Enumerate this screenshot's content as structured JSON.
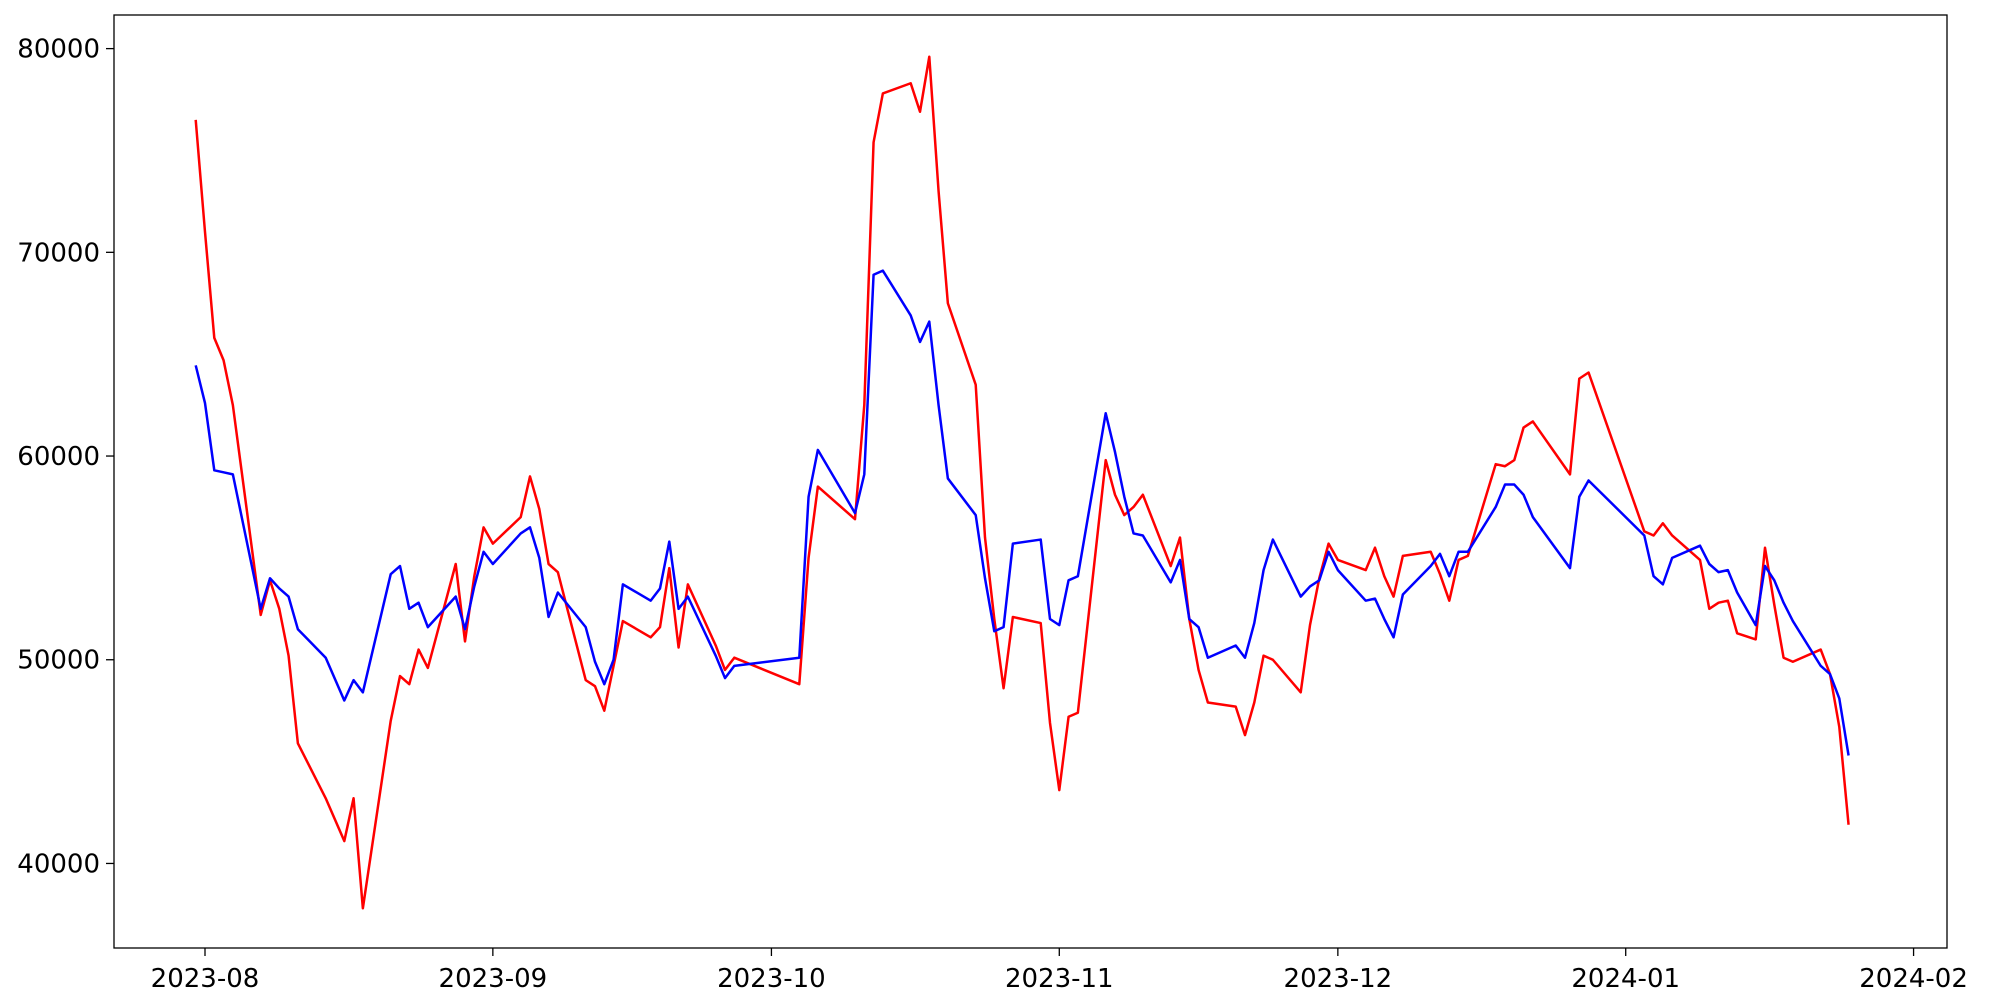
{
  "chart_data": {
    "type": "line",
    "x": [
      -1,
      0,
      1,
      2,
      3,
      6,
      7,
      8,
      9,
      10,
      13,
      15,
      16,
      17,
      20,
      21,
      22,
      23,
      24,
      27,
      28,
      29,
      30,
      31,
      34,
      35,
      36,
      37,
      38,
      41,
      42,
      43,
      44,
      45,
      48,
      49,
      50,
      51,
      52,
      55,
      56,
      57,
      64,
      65,
      66,
      70,
      71,
      72,
      73,
      76,
      77,
      78,
      79,
      80,
      83,
      84,
      85,
      86,
      87,
      90,
      91,
      92,
      93,
      94,
      97,
      98,
      99,
      100,
      101,
      104,
      105,
      106,
      107,
      108,
      111,
      112,
      113,
      114,
      115,
      118,
      119,
      120,
      121,
      122,
      125,
      126,
      127,
      128,
      129,
      132,
      133,
      134,
      135,
      136,
      139,
      140,
      141,
      142,
      143,
      147,
      148,
      149,
      155,
      156,
      157,
      158,
      161,
      162,
      163,
      164,
      165,
      167,
      168,
      169,
      170,
      171,
      174,
      175,
      176,
      177
    ],
    "series": [
      {
        "color": "#ff0000",
        "values": [
          76500,
          71000,
          65800,
          64700,
          62500,
          52200,
          53900,
          52500,
          50200,
          45900,
          43200,
          41100,
          43200,
          37800,
          47000,
          49200,
          48800,
          50500,
          49600,
          54700,
          50900,
          54100,
          56500,
          55700,
          57000,
          59000,
          57400,
          54700,
          54300,
          49000,
          48700,
          47500,
          49700,
          51900,
          51100,
          51600,
          54500,
          50600,
          53700,
          50700,
          49500,
          50100,
          48800,
          55000,
          58500,
          56900,
          62500,
          75400,
          77800,
          78300,
          76900,
          79600,
          73000,
          67500,
          63500,
          56000,
          52000,
          48600,
          52100,
          51800,
          46900,
          43600,
          47200,
          47400,
          59800,
          58100,
          57100,
          57500,
          58100,
          54600,
          56000,
          52000,
          49500,
          47900,
          47700,
          46300,
          47900,
          50200,
          50000,
          48400,
          51700,
          54000,
          55700,
          54900,
          54400,
          55500,
          54100,
          53100,
          55100,
          55300,
          54200,
          52900,
          54900,
          55100,
          59600,
          59500,
          59800,
          61400,
          61700,
          59100,
          63800,
          64100,
          56300,
          56100,
          56700,
          56100,
          54900,
          52500,
          52800,
          52900,
          51300,
          51000,
          55500,
          52700,
          50100,
          49900,
          50500,
          49300,
          46700,
          41900
        ]
      },
      {
        "color": "#0000ff",
        "values": [
          64450,
          62600,
          59300,
          59200,
          59100,
          52500,
          54000,
          53500,
          53100,
          51500,
          50100,
          48000,
          49000,
          48400,
          54200,
          54600,
          52500,
          52800,
          51600,
          53100,
          51500,
          53600,
          55300,
          54700,
          56200,
          56500,
          55000,
          52100,
          53300,
          51600,
          49900,
          48800,
          50000,
          53700,
          52900,
          53500,
          55800,
          52500,
          53100,
          50200,
          49100,
          49700,
          50100,
          58000,
          60300,
          57200,
          59100,
          68900,
          69100,
          66900,
          65600,
          66600,
          62500,
          58900,
          57100,
          54000,
          51400,
          51600,
          55700,
          55900,
          52000,
          51700,
          53900,
          54100,
          62100,
          60200,
          58000,
          56200,
          56100,
          53800,
          54900,
          52000,
          51600,
          50100,
          50700,
          50100,
          51800,
          54400,
          55900,
          53100,
          53600,
          53900,
          55300,
          54400,
          52900,
          53000,
          52000,
          51100,
          53200,
          54600,
          55200,
          54100,
          55300,
          55300,
          57500,
          58600,
          58600,
          58100,
          57000,
          54500,
          58000,
          58800,
          56100,
          54100,
          53700,
          55000,
          55600,
          54700,
          54300,
          54400,
          53300,
          51700,
          54600,
          53900,
          52800,
          51900,
          49700,
          49300,
          48100,
          45300
        ]
      }
    ],
    "xlim": [
      -9.8,
      187.6
    ],
    "xticks": [
      {
        "value": 0,
        "label": "2023-08"
      },
      {
        "value": 31,
        "label": "2023-09"
      },
      {
        "value": 61,
        "label": "2023-10"
      },
      {
        "value": 92,
        "label": "2023-11"
      },
      {
        "value": 122,
        "label": "2023-12"
      },
      {
        "value": 153,
        "label": "2024-01"
      },
      {
        "value": 184,
        "label": "2024-02"
      }
    ],
    "ylim": [
      35850,
      81650
    ],
    "yticks": [
      40000,
      50000,
      60000,
      70000,
      80000
    ],
    "grid": false
  }
}
